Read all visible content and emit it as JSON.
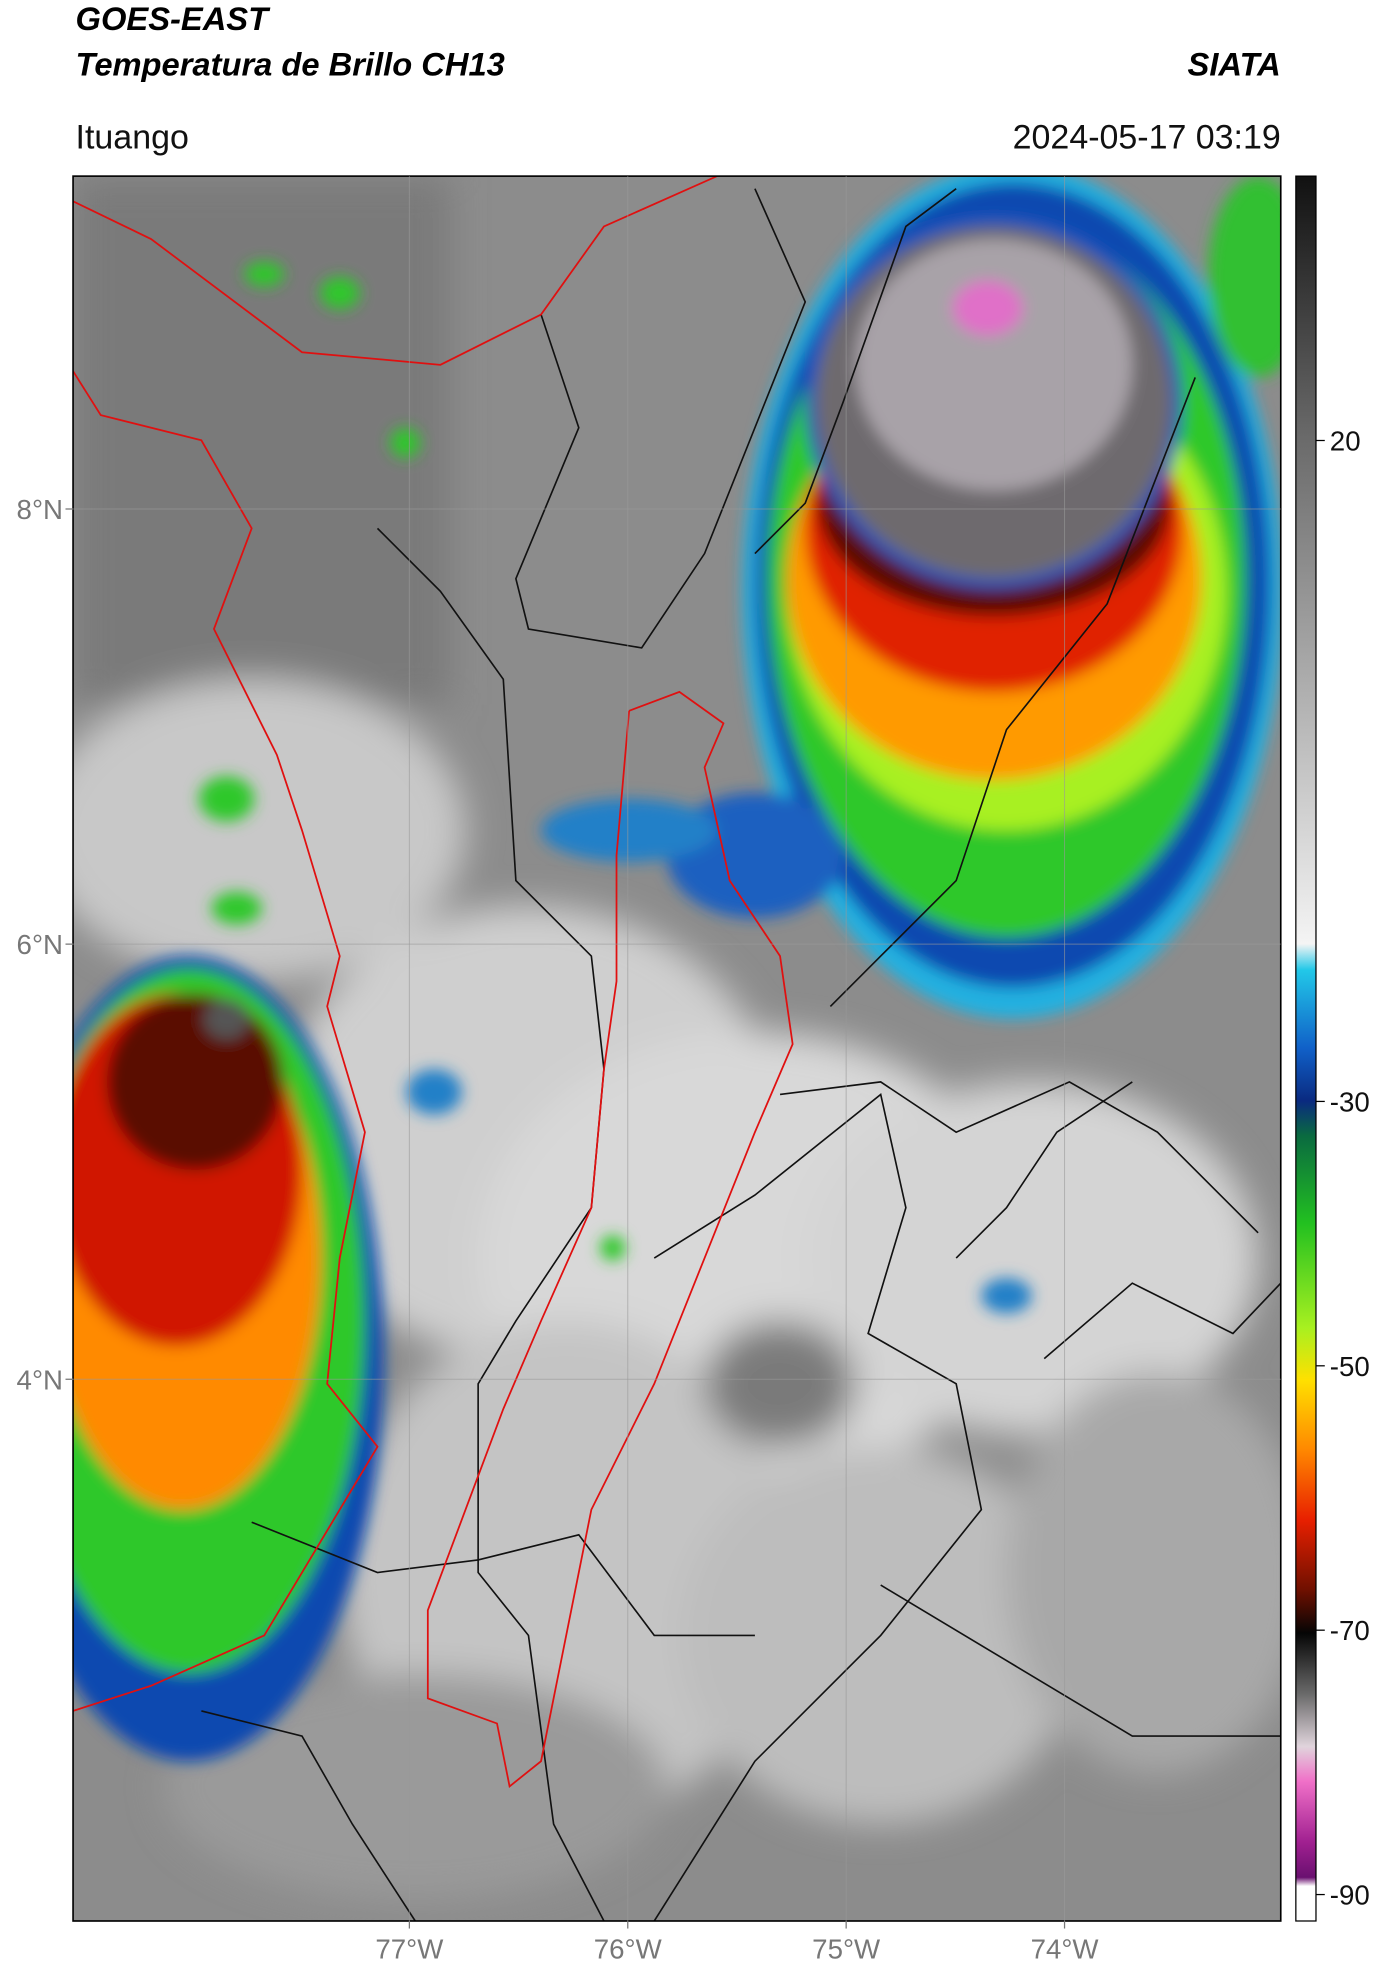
{
  "header": {
    "title_line1": "GOES-EAST",
    "title_line2": "Temperatura de Brillo CH13",
    "brand": "SIATA",
    "location": "Ituango",
    "timestamp": "2024-05-17 03:19"
  },
  "map": {
    "lon_range": [
      -78.54,
      -73.01
    ],
    "lat_range": [
      1.51,
      9.53
    ],
    "lat_ticks": [
      {
        "value": 8,
        "label": "8°N"
      },
      {
        "value": 6,
        "label": "6°N"
      },
      {
        "value": 4,
        "label": "4°N"
      }
    ],
    "lon_ticks": [
      {
        "value": -77,
        "label": "77°W"
      },
      {
        "value": -76,
        "label": "76°W"
      },
      {
        "value": -75,
        "label": "75°W"
      },
      {
        "value": -74,
        "label": "74°W"
      }
    ]
  },
  "colorbar": {
    "range": [
      -92,
      40
    ],
    "ticks": [
      20,
      -30,
      -50,
      -70,
      -90
    ]
  }
}
